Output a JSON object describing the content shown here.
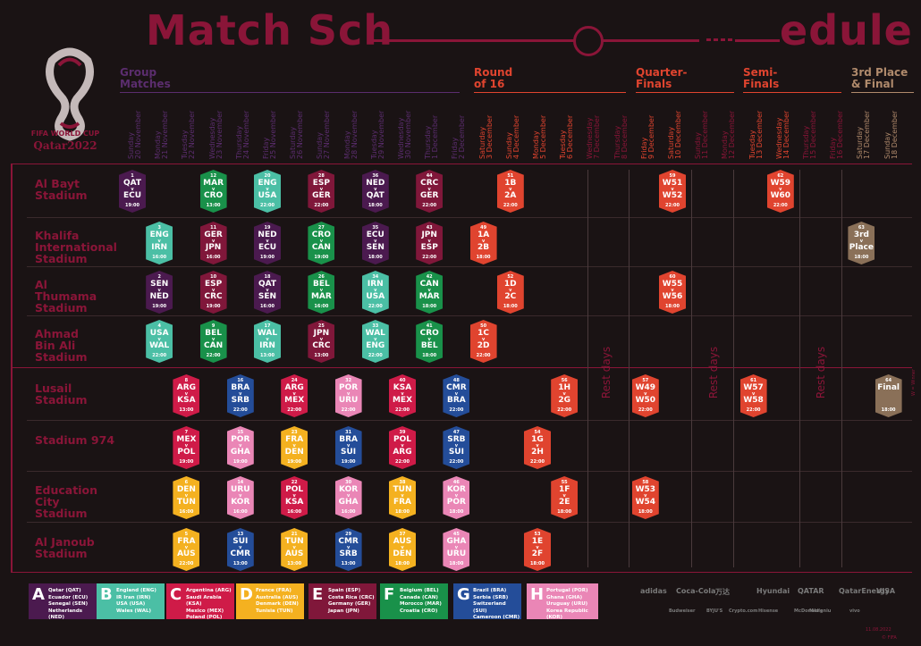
{
  "title": {
    "part1": "Match Sch",
    "part2": "edule"
  },
  "logo": {
    "line1": "FIFA WORLD CUP",
    "line2": "Qatar2022"
  },
  "colors": {
    "brand": "#8a1538",
    "A": "#4b1a4f",
    "B": "#4bbfa5",
    "C": "#cf1b48",
    "D": "#f4b120",
    "E": "#80173a",
    "F": "#19914a",
    "G": "#244d99",
    "H": "#ea86b6",
    "KO": "#e0442f",
    "FINAL": "#8a7058",
    "restday": "#8a1538"
  },
  "phases": [
    {
      "label": "Group\nMatches",
      "color": "#5b2d6e"
    },
    {
      "label": "Round\nof 16",
      "color": "#e0442f"
    },
    {
      "label": "Quarter-\nFinals",
      "color": "#e0442f"
    },
    {
      "label": "Semi-\nFinals",
      "color": "#e0442f"
    },
    {
      "label": "3rd Place\n& Final",
      "color": "#b08a6c"
    }
  ],
  "days": [
    {
      "w": "Sunday",
      "d": "20 November",
      "c": "#5b2d6e"
    },
    {
      "w": "Monday",
      "d": "21 November",
      "c": "#5b2d6e"
    },
    {
      "w": "Tuesday",
      "d": "22 November",
      "c": "#5b2d6e"
    },
    {
      "w": "Wednesday",
      "d": "23 November",
      "c": "#5b2d6e"
    },
    {
      "w": "Thursday",
      "d": "24 November",
      "c": "#5b2d6e"
    },
    {
      "w": "Friday",
      "d": "25 November",
      "c": "#5b2d6e"
    },
    {
      "w": "Saturday",
      "d": "26 November",
      "c": "#5b2d6e"
    },
    {
      "w": "Sunday",
      "d": "27 November",
      "c": "#5b2d6e"
    },
    {
      "w": "Monday",
      "d": "28 November",
      "c": "#5b2d6e"
    },
    {
      "w": "Tuesday",
      "d": "29 November",
      "c": "#5b2d6e"
    },
    {
      "w": "Wednesday",
      "d": "30 November",
      "c": "#5b2d6e"
    },
    {
      "w": "Thursday",
      "d": "1 December",
      "c": "#5b2d6e"
    },
    {
      "w": "Friday",
      "d": "2 December",
      "c": "#5b2d6e"
    },
    {
      "w": "Saturday",
      "d": "3 December",
      "c": "#e0442f"
    },
    {
      "w": "Sunday",
      "d": "4 December",
      "c": "#e0442f"
    },
    {
      "w": "Monday",
      "d": "5 December",
      "c": "#e0442f"
    },
    {
      "w": "Tuesday",
      "d": "6 December",
      "c": "#e0442f"
    },
    {
      "w": "Wednesday",
      "d": "7 December",
      "c": "#8a1538"
    },
    {
      "w": "Thursday",
      "d": "8 December",
      "c": "#8a1538"
    },
    {
      "w": "Friday",
      "d": "9 December",
      "c": "#e0442f"
    },
    {
      "w": "Saturday",
      "d": "10 December",
      "c": "#e0442f"
    },
    {
      "w": "Sunday",
      "d": "11 December",
      "c": "#8a1538"
    },
    {
      "w": "Monday",
      "d": "12 December",
      "c": "#8a1538"
    },
    {
      "w": "Tuesday",
      "d": "13 December",
      "c": "#e0442f"
    },
    {
      "w": "Wednesday",
      "d": "14 December",
      "c": "#e0442f"
    },
    {
      "w": "Thursday",
      "d": "15 December",
      "c": "#8a1538"
    },
    {
      "w": "Friday",
      "d": "16 December",
      "c": "#8a1538"
    },
    {
      "w": "Saturday",
      "d": "17 December",
      "c": "#b08a6c"
    },
    {
      "w": "Sunday",
      "d": "18 December",
      "c": "#b08a6c"
    }
  ],
  "stadiums": [
    "Al Bayt\nStadium",
    "Khalifa\nInternational\nStadium",
    "Al\nThumama\nStadium",
    "Ahmad\nBin Ali\nStadium",
    "Lusail\nStadium",
    "Stadium 974",
    "Education\nCity\nStadium",
    "Al Janoub\nStadium"
  ],
  "rest_label": "Rest days",
  "matches": [
    {
      "n": "1",
      "t1": "QAT",
      "t2": "ECU",
      "time": "19:00",
      "g": "A",
      "col": 0,
      "row": 0
    },
    {
      "n": "12",
      "t1": "MAR",
      "t2": "CRO",
      "time": "13:00",
      "g": "F",
      "col": 3,
      "row": 0
    },
    {
      "n": "20",
      "t1": "ENG",
      "t2": "USA",
      "time": "22:00",
      "g": "B",
      "col": 5,
      "row": 0
    },
    {
      "n": "28",
      "t1": "ESP",
      "t2": "GER",
      "time": "22:00",
      "g": "E",
      "col": 7,
      "row": 0
    },
    {
      "n": "36",
      "t1": "NED",
      "t2": "QAT",
      "time": "18:00",
      "g": "A",
      "col": 9,
      "row": 0
    },
    {
      "n": "44",
      "t1": "CRC",
      "t2": "GER",
      "time": "22:00",
      "g": "E",
      "col": 11,
      "row": 0
    },
    {
      "n": "51",
      "t1": "1B",
      "t2": "2A",
      "time": "22:00",
      "g": "KO",
      "col": 14,
      "row": 0
    },
    {
      "n": "59",
      "t1": "W51",
      "t2": "W52",
      "time": "22:00",
      "g": "KO",
      "col": 20,
      "row": 0
    },
    {
      "n": "62",
      "t1": "W59",
      "t2": "W60",
      "time": "22:00",
      "g": "KO",
      "col": 24,
      "row": 0
    },
    {
      "n": "3",
      "t1": "ENG",
      "t2": "IRN",
      "time": "16:00",
      "g": "B",
      "col": 1,
      "row": 1
    },
    {
      "n": "11",
      "t1": "GER",
      "t2": "JPN",
      "time": "16:00",
      "g": "E",
      "col": 3,
      "row": 1
    },
    {
      "n": "19",
      "t1": "NED",
      "t2": "ECU",
      "time": "19:00",
      "g": "A",
      "col": 5,
      "row": 1
    },
    {
      "n": "27",
      "t1": "CRO",
      "t2": "CAN",
      "time": "19:00",
      "g": "F",
      "col": 7,
      "row": 1
    },
    {
      "n": "35",
      "t1": "ECU",
      "t2": "SEN",
      "time": "18:00",
      "g": "A",
      "col": 9,
      "row": 1
    },
    {
      "n": "43",
      "t1": "JPN",
      "t2": "ESP",
      "time": "22:00",
      "g": "E",
      "col": 11,
      "row": 1
    },
    {
      "n": "49",
      "t1": "1A",
      "t2": "2B",
      "time": "18:00",
      "g": "KO",
      "col": 13,
      "row": 1
    },
    {
      "n": "63",
      "t1": "3rd",
      "t2": "Place",
      "time": "18:00",
      "g": "FINAL",
      "col": 27,
      "row": 1
    },
    {
      "n": "2",
      "t1": "SEN",
      "t2": "NED",
      "time": "19:00",
      "g": "A",
      "col": 1,
      "row": 2
    },
    {
      "n": "10",
      "t1": "ESP",
      "t2": "CRC",
      "time": "19:00",
      "g": "E",
      "col": 3,
      "row": 2
    },
    {
      "n": "18",
      "t1": "QAT",
      "t2": "SEN",
      "time": "16:00",
      "g": "A",
      "col": 5,
      "row": 2
    },
    {
      "n": "26",
      "t1": "BEL",
      "t2": "MAR",
      "time": "16:00",
      "g": "F",
      "col": 7,
      "row": 2
    },
    {
      "n": "34",
      "t1": "IRN",
      "t2": "USA",
      "time": "22:00",
      "g": "B",
      "col": 9,
      "row": 2
    },
    {
      "n": "42",
      "t1": "CAN",
      "t2": "MAR",
      "time": "18:00",
      "g": "F",
      "col": 11,
      "row": 2
    },
    {
      "n": "52",
      "t1": "1D",
      "t2": "2C",
      "time": "18:00",
      "g": "KO",
      "col": 14,
      "row": 2
    },
    {
      "n": "60",
      "t1": "W55",
      "t2": "W56",
      "time": "18:00",
      "g": "KO",
      "col": 20,
      "row": 2
    },
    {
      "n": "4",
      "t1": "USA",
      "t2": "WAL",
      "time": "22:00",
      "g": "B",
      "col": 1,
      "row": 3
    },
    {
      "n": "9",
      "t1": "BEL",
      "t2": "CAN",
      "time": "22:00",
      "g": "F",
      "col": 3,
      "row": 3
    },
    {
      "n": "17",
      "t1": "WAL",
      "t2": "IRN",
      "time": "13:00",
      "g": "B",
      "col": 5,
      "row": 3
    },
    {
      "n": "25",
      "t1": "JPN",
      "t2": "CRC",
      "time": "13:00",
      "g": "E",
      "col": 7,
      "row": 3
    },
    {
      "n": "33",
      "t1": "WAL",
      "t2": "ENG",
      "time": "22:00",
      "g": "B",
      "col": 9,
      "row": 3
    },
    {
      "n": "41",
      "t1": "CRO",
      "t2": "BEL",
      "time": "18:00",
      "g": "F",
      "col": 11,
      "row": 3
    },
    {
      "n": "50",
      "t1": "1C",
      "t2": "2D",
      "time": "22:00",
      "g": "KO",
      "col": 13,
      "row": 3
    },
    {
      "n": "8",
      "t1": "ARG",
      "t2": "KSA",
      "time": "13:00",
      "g": "C",
      "col": 2,
      "row": 4
    },
    {
      "n": "16",
      "t1": "BRA",
      "t2": "SRB",
      "time": "22:00",
      "g": "G",
      "col": 4,
      "row": 4
    },
    {
      "n": "24",
      "t1": "ARG",
      "t2": "MEX",
      "time": "22:00",
      "g": "C",
      "col": 6,
      "row": 4
    },
    {
      "n": "32",
      "t1": "POR",
      "t2": "URU",
      "time": "22:00",
      "g": "H",
      "col": 8,
      "row": 4
    },
    {
      "n": "40",
      "t1": "KSA",
      "t2": "MEX",
      "time": "22:00",
      "g": "C",
      "col": 10,
      "row": 4
    },
    {
      "n": "48",
      "t1": "CMR",
      "t2": "BRA",
      "time": "22:00",
      "g": "G",
      "col": 12,
      "row": 4
    },
    {
      "n": "56",
      "t1": "1H",
      "t2": "2G",
      "time": "22:00",
      "g": "KO",
      "col": 16,
      "row": 4
    },
    {
      "n": "57",
      "t1": "W49",
      "t2": "W50",
      "time": "22:00",
      "g": "KO",
      "col": 19,
      "row": 4
    },
    {
      "n": "61",
      "t1": "W57",
      "t2": "W58",
      "time": "22:00",
      "g": "KO",
      "col": 23,
      "row": 4
    },
    {
      "n": "64",
      "t1": "Final",
      "t2": "",
      "time": "18:00",
      "g": "FINAL",
      "col": 28,
      "row": 4
    },
    {
      "n": "7",
      "t1": "MEX",
      "t2": "POL",
      "time": "19:00",
      "g": "C",
      "col": 2,
      "row": 5
    },
    {
      "n": "15",
      "t1": "POR",
      "t2": "GHA",
      "time": "19:00",
      "g": "H",
      "col": 4,
      "row": 5
    },
    {
      "n": "23",
      "t1": "FRA",
      "t2": "DEN",
      "time": "19:00",
      "g": "D",
      "col": 6,
      "row": 5
    },
    {
      "n": "31",
      "t1": "BRA",
      "t2": "SUI",
      "time": "19:00",
      "g": "G",
      "col": 8,
      "row": 5
    },
    {
      "n": "39",
      "t1": "POL",
      "t2": "ARG",
      "time": "22:00",
      "g": "C",
      "col": 10,
      "row": 5
    },
    {
      "n": "47",
      "t1": "SRB",
      "t2": "SUI",
      "time": "22:00",
      "g": "G",
      "col": 12,
      "row": 5
    },
    {
      "n": "54",
      "t1": "1G",
      "t2": "2H",
      "time": "22:00",
      "g": "KO",
      "col": 15,
      "row": 5
    },
    {
      "n": "6",
      "t1": "DEN",
      "t2": "TUN",
      "time": "16:00",
      "g": "D",
      "col": 2,
      "row": 6
    },
    {
      "n": "14",
      "t1": "URU",
      "t2": "KOR",
      "time": "16:00",
      "g": "H",
      "col": 4,
      "row": 6
    },
    {
      "n": "22",
      "t1": "POL",
      "t2": "KSA",
      "time": "16:00",
      "g": "C",
      "col": 6,
      "row": 6
    },
    {
      "n": "30",
      "t1": "KOR",
      "t2": "GHA",
      "time": "16:00",
      "g": "H",
      "col": 8,
      "row": 6
    },
    {
      "n": "38",
      "t1": "TUN",
      "t2": "FRA",
      "time": "18:00",
      "g": "D",
      "col": 10,
      "row": 6
    },
    {
      "n": "46",
      "t1": "KOR",
      "t2": "POR",
      "time": "18:00",
      "g": "H",
      "col": 12,
      "row": 6
    },
    {
      "n": "55",
      "t1": "1F",
      "t2": "2E",
      "time": "18:00",
      "g": "KO",
      "col": 16,
      "row": 6
    },
    {
      "n": "58",
      "t1": "W53",
      "t2": "W54",
      "time": "18:00",
      "g": "KO",
      "col": 19,
      "row": 6
    },
    {
      "n": "5",
      "t1": "FRA",
      "t2": "AUS",
      "time": "22:00",
      "g": "D",
      "col": 2,
      "row": 7
    },
    {
      "n": "13",
      "t1": "SUI",
      "t2": "CMR",
      "time": "13:00",
      "g": "G",
      "col": 4,
      "row": 7
    },
    {
      "n": "21",
      "t1": "TUN",
      "t2": "AUS",
      "time": "13:00",
      "g": "D",
      "col": 6,
      "row": 7
    },
    {
      "n": "29",
      "t1": "CMR",
      "t2": "SRB",
      "time": "13:00",
      "g": "G",
      "col": 8,
      "row": 7
    },
    {
      "n": "37",
      "t1": "AUS",
      "t2": "DEN",
      "time": "18:00",
      "g": "D",
      "col": 10,
      "row": 7
    },
    {
      "n": "45",
      "t1": "GHA",
      "t2": "URU",
      "time": "18:00",
      "g": "H",
      "col": 12,
      "row": 7
    },
    {
      "n": "53",
      "t1": "1E",
      "t2": "2F",
      "time": "18:00",
      "g": "KO",
      "col": 15,
      "row": 7
    }
  ],
  "groups": [
    {
      "letter": "A",
      "teams": "Qatar (QAT)\nEcuador (ECU)\nSenegal (SEN)\nNetherlands (NED)"
    },
    {
      "letter": "B",
      "teams": "England (ENG)\nIR Iran (IRN)\nUSA (USA)\nWales (WAL)"
    },
    {
      "letter": "C",
      "teams": "Argentina (ARG)\nSaudi Arabia (KSA)\nMexico (MEX)\nPoland (POL)"
    },
    {
      "letter": "D",
      "teams": "France (FRA)\nAustralia (AUS)\nDenmark (DEN)\nTunisia (TUN)"
    },
    {
      "letter": "E",
      "teams": "Spain (ESP)\nCosta Rica (CRC)\nGermany (GER)\nJapan (JPN)"
    },
    {
      "letter": "F",
      "teams": "Belgium (BEL)\nCanada (CAN)\nMorocco (MAR)\nCroatia (CRO)"
    },
    {
      "letter": "G",
      "teams": "Brazil (BRA)\nSerbia (SRB)\nSwitzerland (SUI)\nCameroon (CMR)"
    },
    {
      "letter": "H",
      "teams": "Portugal (POR)\nGhana (GHA)\nUruguay (URU)\nKorea Republic (KOR)"
    }
  ],
  "sponsors_top": [
    "adidas",
    "Coca-Cola",
    "万达",
    "Hyundai",
    "QATAR",
    "QatarEnergy",
    "VISA"
  ],
  "sponsors_bottom": [
    "Budweiser",
    "BYJU'S",
    "Crypto.com",
    "Hisense",
    "McDonald's",
    "Mengniu",
    "vivo"
  ],
  "footer": {
    "date": "11.08.2022",
    "copyright": "© FIFA"
  }
}
